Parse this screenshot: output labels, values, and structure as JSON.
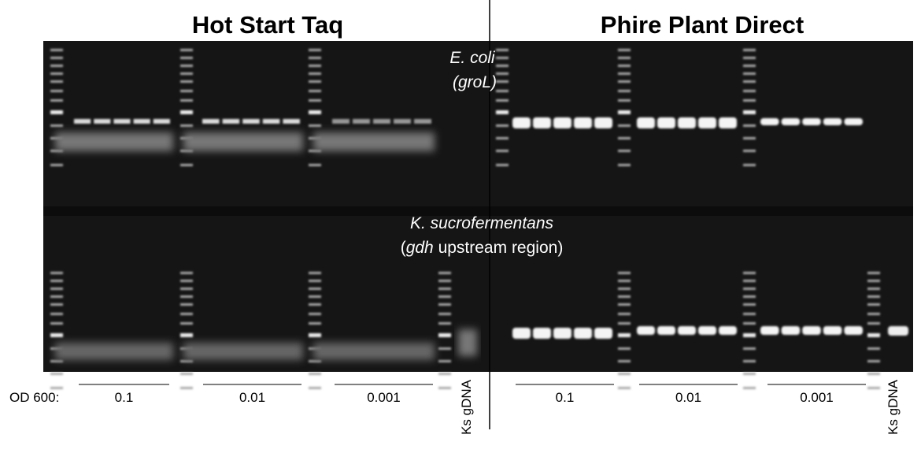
{
  "titles": {
    "left": "Hot Start Taq",
    "right": "Phire Plant Direct"
  },
  "annotations": {
    "top": {
      "organism": "E. coli",
      "gene": "(groL)"
    },
    "bottom": {
      "organism": "K. sucrofermentans",
      "gene_parts": [
        "(",
        "gdh",
        " upstream region)"
      ]
    }
  },
  "lane_labels": {
    "od_label": "OD 600:",
    "left": [
      "0.1",
      "0.01",
      "0.001",
      "Ks gDNA"
    ],
    "right": [
      "0.1",
      "0.01",
      "0.001",
      "Ks gDNA"
    ]
  }
}
